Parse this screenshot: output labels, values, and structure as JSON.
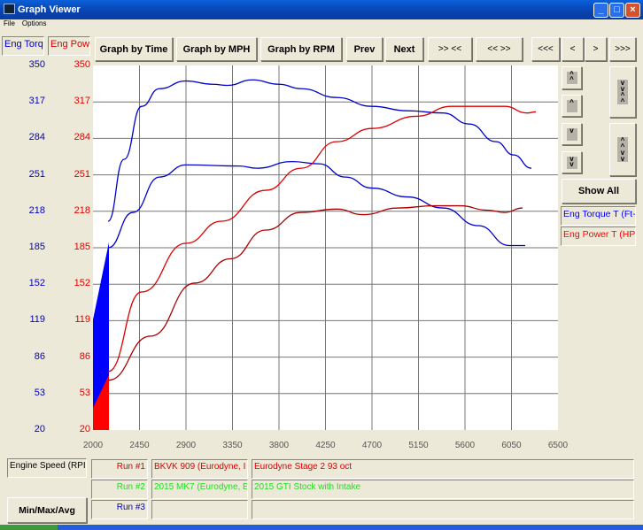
{
  "window": {
    "title": "Graph Viewer"
  },
  "menu": [
    "File",
    "Options"
  ],
  "axis_labels": {
    "torque": "Eng Torqu",
    "power": "Eng Powe"
  },
  "toolbar": {
    "by_time": "Graph by Time",
    "by_mph": "Graph by MPH",
    "by_rpm": "Graph by RPM",
    "prev": "Prev",
    "next": "Next",
    "zoom_in": ">> <<",
    "zoom_out": "<< >>",
    "first": "<<<",
    "back": "<",
    "fwd": ">",
    "last": ">>>"
  },
  "side": {
    "show_all": "Show All",
    "legend": [
      {
        "label": "Eng Torque T (Ft-l",
        "color": "#0000ff"
      },
      {
        "label": "Eng Power T (HP)",
        "color": "#ff0000"
      }
    ]
  },
  "bottom": {
    "x_channel": "Engine Speed (RPI",
    "minmax": "Min/Max/Avg",
    "runs": [
      {
        "label": "Run #1",
        "name": "BKVK 909 (Eurodyne, I",
        "desc": "Eurodyne Stage 2 93 oct",
        "color": "#dd0000"
      },
      {
        "label": "Run #2",
        "name": "2015 MK7 (Eurodyne, E",
        "desc": "2015 GTI Stock with Intake",
        "color": "#22dd22"
      },
      {
        "label": "Run #3",
        "name": "",
        "desc": "",
        "color": "#0000cc"
      }
    ]
  },
  "chart_data": {
    "type": "line",
    "xlim": [
      2000,
      6500
    ],
    "ylim": [
      20,
      350
    ],
    "grid": true,
    "x_ticks": [
      "2000",
      "2450",
      "2900",
      "3350",
      "3800",
      "4250",
      "4700",
      "5150",
      "5600",
      "6050",
      "6500"
    ],
    "y_ticks_torque": [
      "350",
      "317",
      "284",
      "251",
      "218",
      "185",
      "152",
      "119",
      "86",
      "53",
      "20"
    ],
    "y_ticks_power": [
      "350",
      "317",
      "284",
      "251",
      "218",
      "185",
      "152",
      "119",
      "86",
      "53",
      "20"
    ],
    "series": [
      {
        "run": 1,
        "channel": "torque",
        "color": "#0000cc",
        "x": [
          2146,
          2300,
          2471,
          2643,
          2900,
          3157,
          3300,
          3543,
          3800,
          4014,
          4357,
          4700,
          5043,
          5386,
          5643,
          5900,
          6071,
          6243
        ],
        "y": [
          209,
          265,
          313,
          329,
          336,
          333,
          332,
          337,
          333,
          329,
          321,
          313,
          309,
          307,
          297,
          281,
          269,
          257
        ]
      },
      {
        "run": 2,
        "channel": "torque",
        "color": "#0000cc",
        "x": [
          2146,
          2386,
          2643,
          2900,
          3414,
          3586,
          3929,
          4186,
          4443,
          4700,
          5043,
          5386,
          5729,
          6029,
          6183
        ],
        "y": [
          185,
          217,
          249,
          260,
          259,
          257,
          263,
          261,
          249,
          239,
          231,
          221,
          205,
          187,
          187
        ]
      },
      {
        "run": 1,
        "channel": "power",
        "color": "#dd0000",
        "x": [
          2146,
          2471,
          2900,
          3243,
          3671,
          4014,
          4357,
          4700,
          5129,
          5471,
          5729,
          5986,
          6200,
          6286
        ],
        "y": [
          73,
          145,
          189,
          209,
          237,
          257,
          281,
          293,
          304,
          313,
          313,
          313,
          307,
          308
        ]
      },
      {
        "run": 2,
        "channel": "power",
        "color": "#aa0000",
        "x": [
          2146,
          2557,
          2986,
          3329,
          3671,
          4014,
          4357,
          4614,
          4957,
          5300,
          5557,
          5814,
          5986,
          6157
        ],
        "y": [
          65,
          105,
          153,
          175,
          201,
          217,
          220,
          215,
          221,
          223,
          223,
          219,
          217,
          221
        ]
      }
    ]
  }
}
